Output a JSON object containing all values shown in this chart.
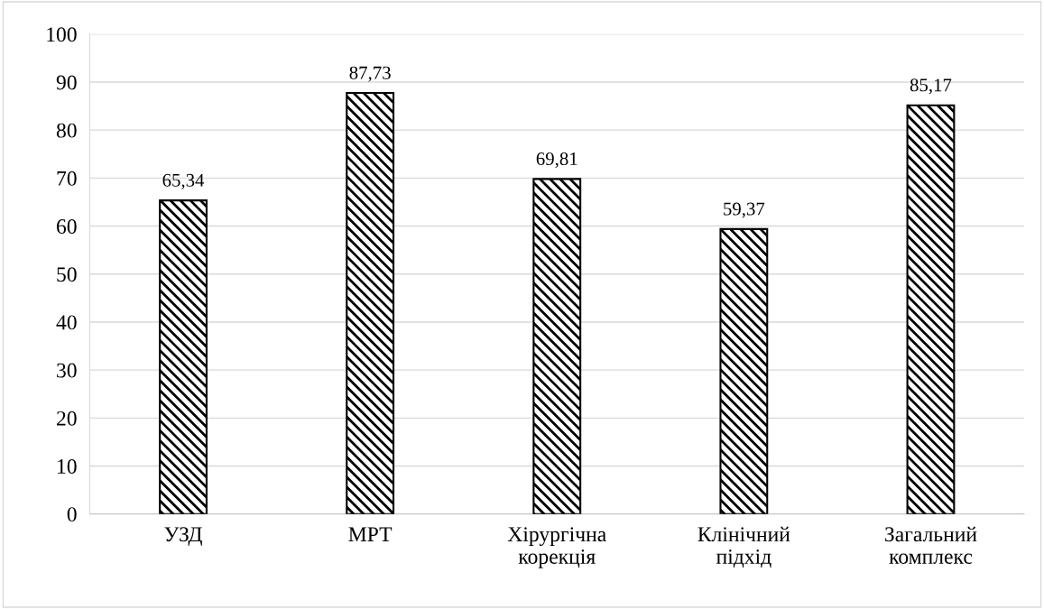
{
  "chart_data": {
    "type": "bar",
    "categories": [
      "УЗД",
      "МРТ",
      "Хірургічна\nкорекція",
      "Клінічний\nпідхід",
      "Загальний\nкомплекс"
    ],
    "values": [
      65.34,
      87.73,
      69.81,
      59.37,
      85.17
    ],
    "value_labels": [
      "65,34",
      "87,73",
      "69,81",
      "59,37",
      "85,17"
    ],
    "color": "#000000",
    "ylim": [
      0,
      100
    ],
    "yticks": [
      0,
      10,
      20,
      30,
      40,
      50,
      60,
      70,
      80,
      90,
      100
    ],
    "grid": "y",
    "legend": false
  }
}
